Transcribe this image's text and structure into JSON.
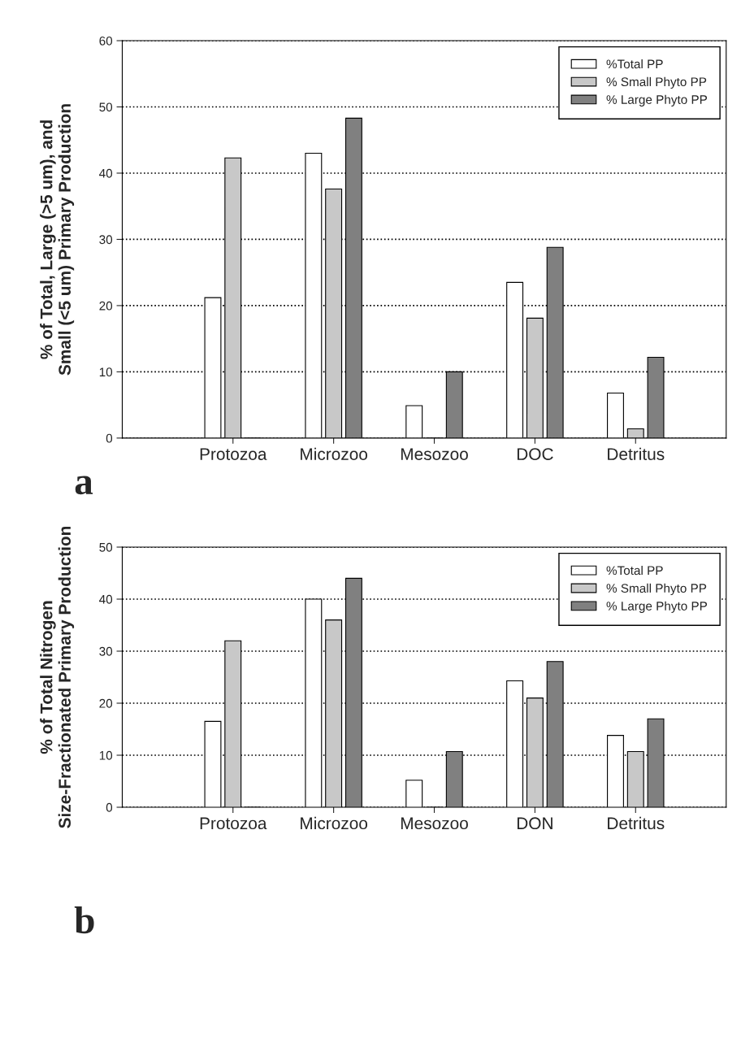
{
  "chart_data": [
    {
      "type": "bar",
      "ylabel": "% of Total, Large (>5 um), and\nSmall (<5 um) Primary Production",
      "categories": [
        "Protozoa",
        "Microzoo",
        "Mesozoo",
        "DOC",
        "Detritus"
      ],
      "series": [
        {
          "name": "%Total PP",
          "color": "#ffffff",
          "values": [
            21.2,
            43,
            4.9,
            23.5,
            6.8
          ]
        },
        {
          "name": "% Small Phyto PP",
          "color": "#c8c8c8",
          "values": [
            42.3,
            37.6,
            0,
            18.1,
            1.4
          ]
        },
        {
          "name": "% Large Phyto PP",
          "color": "#808080",
          "values": [
            0,
            48.3,
            10,
            28.8,
            12.2
          ]
        }
      ],
      "ylim": [
        0,
        60
      ],
      "yticks": [
        0,
        10,
        20,
        30,
        40,
        50,
        60
      ],
      "grid": "y",
      "legend": "top right",
      "annotations": [
        "a"
      ]
    },
    {
      "type": "bar",
      "ylabel": "% of Total Nitrogen\nSize-Fractionated Primary Production",
      "categories": [
        "Protozoa",
        "Microzoo",
        "Mesozoo",
        "DON",
        "Detritus"
      ],
      "series": [
        {
          "name": "%Total PP",
          "color": "#ffffff",
          "values": [
            16.5,
            40,
            5.2,
            24.3,
            13.8
          ]
        },
        {
          "name": "% Small Phyto PP",
          "color": "#c8c8c8",
          "values": [
            32,
            36,
            0,
            21,
            10.7
          ]
        },
        {
          "name": "% Large Phyto PP",
          "color": "#808080",
          "values": [
            0,
            44,
            10.7,
            28,
            17
          ]
        }
      ],
      "ylim": [
        0,
        50
      ],
      "yticks": [
        0,
        10,
        20,
        30,
        40,
        50
      ],
      "grid": "y",
      "legend": "top right",
      "annotations": [
        "b"
      ]
    }
  ]
}
